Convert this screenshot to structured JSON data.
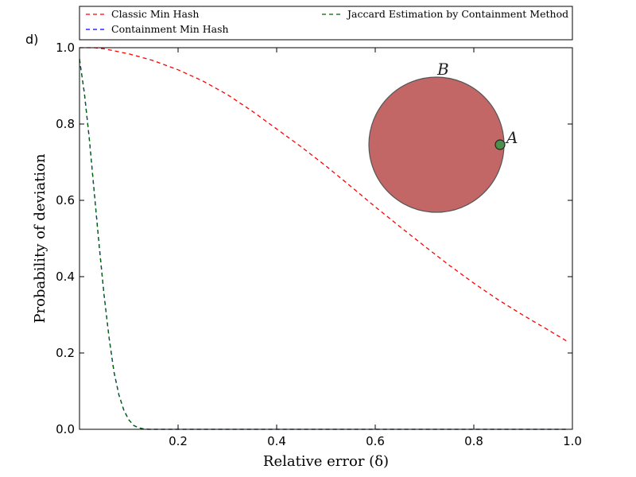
{
  "panel_label": "d)",
  "chart_data": {
    "type": "line",
    "title": "",
    "xlabel": "Relative error (δ)",
    "ylabel": "Probability of deviation",
    "xlim": [
      0.0,
      1.0
    ],
    "ylim": [
      0.0,
      1.0
    ],
    "xticks": [
      0.2,
      0.4,
      0.6,
      0.8,
      1.0
    ],
    "xtick_labels": [
      "0.2",
      "0.4",
      "0.6",
      "0.8",
      "1.0"
    ],
    "yticks": [
      0.0,
      0.2,
      0.4,
      0.6,
      0.8,
      1.0
    ],
    "ytick_labels": [
      "0.0",
      "0.2",
      "0.4",
      "0.6",
      "0.8",
      "1.0"
    ],
    "grid": false,
    "legend_position": "top (above plot)",
    "series": [
      {
        "name": "Classic Min Hash",
        "color": "#ff0000",
        "dash": "dashed",
        "x": [
          0.0,
          0.03,
          0.05,
          0.1,
          0.15,
          0.2,
          0.25,
          0.3,
          0.35,
          0.4,
          0.45,
          0.5,
          0.55,
          0.6,
          0.65,
          0.7,
          0.75,
          0.8,
          0.85,
          0.9,
          0.95,
          0.99
        ],
        "y": [
          1.0,
          1.0,
          0.997,
          0.984,
          0.966,
          0.942,
          0.913,
          0.877,
          0.834,
          0.787,
          0.74,
          0.69,
          0.637,
          0.583,
          0.531,
          0.48,
          0.43,
          0.383,
          0.339,
          0.299,
          0.261,
          0.23
        ]
      },
      {
        "name": "Containment Min Hash",
        "color": "#0000ff",
        "dash": "dashed",
        "x": [
          0.0,
          0.01,
          0.02,
          0.03,
          0.04,
          0.05,
          0.06,
          0.07,
          0.08,
          0.09,
          0.1,
          0.11,
          0.12,
          0.13,
          0.14,
          0.15,
          0.2,
          0.4,
          0.6,
          0.8,
          0.99
        ],
        "y": [
          0.97,
          0.88,
          0.76,
          0.62,
          0.48,
          0.35,
          0.24,
          0.15,
          0.09,
          0.05,
          0.025,
          0.01,
          0.004,
          0.001,
          0.0,
          0.0,
          0.0,
          0.0,
          0.0,
          0.0,
          0.0
        ]
      },
      {
        "name": "Jaccard Estimation by Containment Method",
        "color": "#006400",
        "dash": "dashed",
        "x": [
          0.0,
          0.01,
          0.02,
          0.03,
          0.04,
          0.05,
          0.06,
          0.07,
          0.08,
          0.09,
          0.1,
          0.11,
          0.12,
          0.13,
          0.14,
          0.15,
          0.2,
          0.4,
          0.6,
          0.8,
          0.99
        ],
        "y": [
          0.97,
          0.88,
          0.76,
          0.62,
          0.48,
          0.35,
          0.24,
          0.15,
          0.09,
          0.05,
          0.025,
          0.01,
          0.004,
          0.001,
          0.0,
          0.0,
          0.0,
          0.0,
          0.0,
          0.0,
          0.0
        ]
      }
    ],
    "inset": {
      "type": "venn",
      "sets": [
        {
          "label": "B",
          "color": "#b84b4b"
        },
        {
          "label": "A",
          "color": "#4e8f4e"
        }
      ]
    }
  }
}
